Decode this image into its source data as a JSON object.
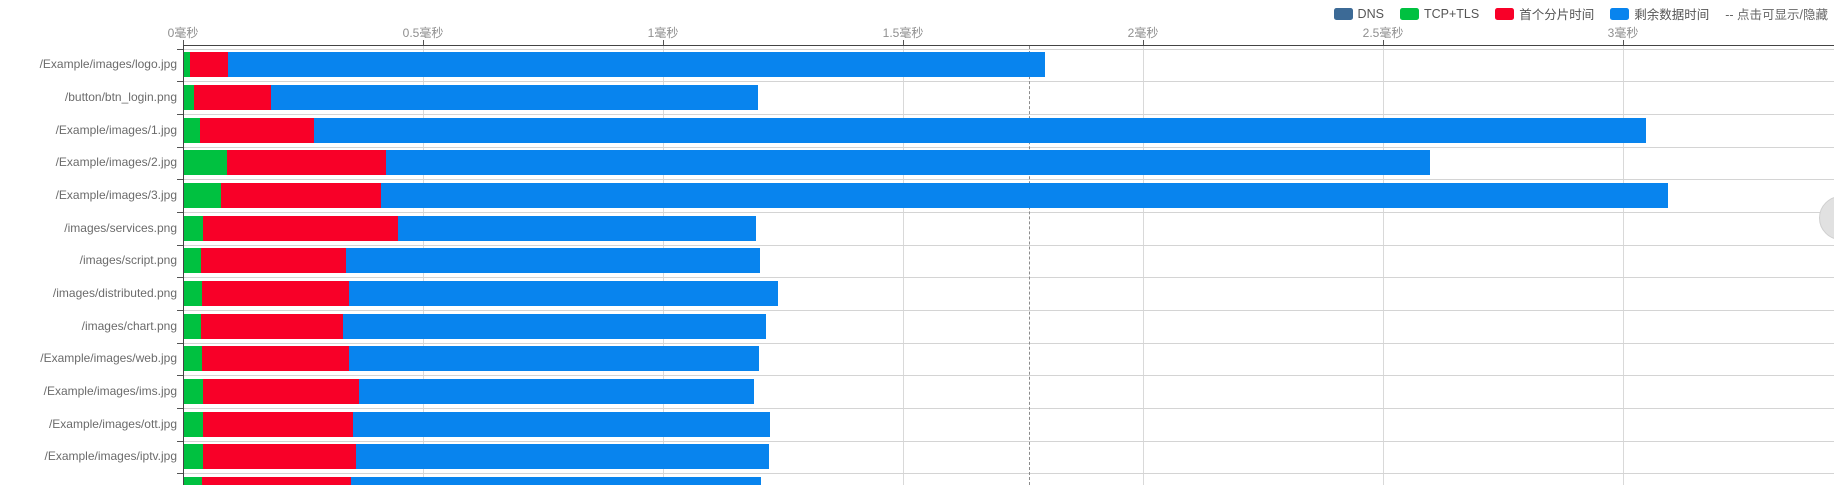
{
  "legend": {
    "items": [
      {
        "id": "dns",
        "label": "DNS",
        "color": "#3c6a96"
      },
      {
        "id": "tcp_tls",
        "label": "TCP+TLS",
        "color": "#00c140"
      },
      {
        "id": "first_chunk",
        "label": "首个分片时间",
        "color": "#f80028"
      },
      {
        "id": "remaining",
        "label": "剩余数据时间",
        "color": "#0884ee"
      }
    ],
    "note": "--  点击可显示/隐藏"
  },
  "chart_data": {
    "type": "bar",
    "orientation": "horizontal",
    "stacked": true,
    "unit": "毫秒",
    "x_axis": {
      "position": "top",
      "range_ms": [
        0,
        3.44
      ],
      "ticks_ms": [
        0,
        0.5,
        1,
        1.5,
        2,
        2.5,
        3
      ],
      "tick_labels": [
        "0毫秒",
        "0.5毫秒",
        "1毫秒",
        "1.5毫秒",
        "2毫秒",
        "2.5毫秒",
        "3毫秒"
      ],
      "grid": true
    },
    "series_order": [
      "dns",
      "tcp_tls",
      "first_chunk",
      "remaining"
    ],
    "series_colors": {
      "dns": "#3c6a96",
      "tcp_tls": "#00c140",
      "first_chunk": "#f80028",
      "remaining": "#0884ee"
    },
    "marker_line_ms": 1.763,
    "rows": [
      {
        "label": "/Example/images/logo.jpg",
        "dns_end": 0,
        "tcp_tls_end": 0.013,
        "first_chunk_end": 0.092,
        "total_end": 1.794
      },
      {
        "label": "/button/btn_login.png",
        "dns_end": 0,
        "tcp_tls_end": 0.021,
        "first_chunk_end": 0.181,
        "total_end": 1.196
      },
      {
        "label": "/Example/images/1.jpg",
        "dns_end": 0,
        "tcp_tls_end": 0.033,
        "first_chunk_end": 0.271,
        "total_end": 3.046
      },
      {
        "label": "/Example/images/2.jpg",
        "dns_end": 0,
        "tcp_tls_end": 0.09,
        "first_chunk_end": 0.421,
        "total_end": 2.596
      },
      {
        "label": "/Example/images/3.jpg",
        "dns_end": 0,
        "tcp_tls_end": 0.077,
        "first_chunk_end": 0.41,
        "total_end": 3.092
      },
      {
        "label": "/images/services.png",
        "dns_end": 0,
        "tcp_tls_end": 0.04,
        "first_chunk_end": 0.446,
        "total_end": 1.192
      },
      {
        "label": "/images/script.png",
        "dns_end": 0,
        "tcp_tls_end": 0.035,
        "first_chunk_end": 0.338,
        "total_end": 1.2
      },
      {
        "label": "/images/distributed.png",
        "dns_end": 0,
        "tcp_tls_end": 0.038,
        "first_chunk_end": 0.344,
        "total_end": 1.238
      },
      {
        "label": "/images/chart.png",
        "dns_end": 0,
        "tcp_tls_end": 0.035,
        "first_chunk_end": 0.331,
        "total_end": 1.213
      },
      {
        "label": "/Example/images/web.jpg",
        "dns_end": 0,
        "tcp_tls_end": 0.038,
        "first_chunk_end": 0.344,
        "total_end": 1.198
      },
      {
        "label": "/Example/images/ims.jpg",
        "dns_end": 0,
        "tcp_tls_end": 0.04,
        "first_chunk_end": 0.365,
        "total_end": 1.188
      },
      {
        "label": "/Example/images/ott.jpg",
        "dns_end": 0,
        "tcp_tls_end": 0.04,
        "first_chunk_end": 0.352,
        "total_end": 1.221
      },
      {
        "label": "/Example/images/iptv.jpg",
        "dns_end": 0,
        "tcp_tls_end": 0.04,
        "first_chunk_end": 0.358,
        "total_end": 1.219
      },
      {
        "label": "",
        "dns_end": 0,
        "tcp_tls_end": 0.038,
        "first_chunk_end": 0.348,
        "total_end": 1.202
      }
    ]
  }
}
